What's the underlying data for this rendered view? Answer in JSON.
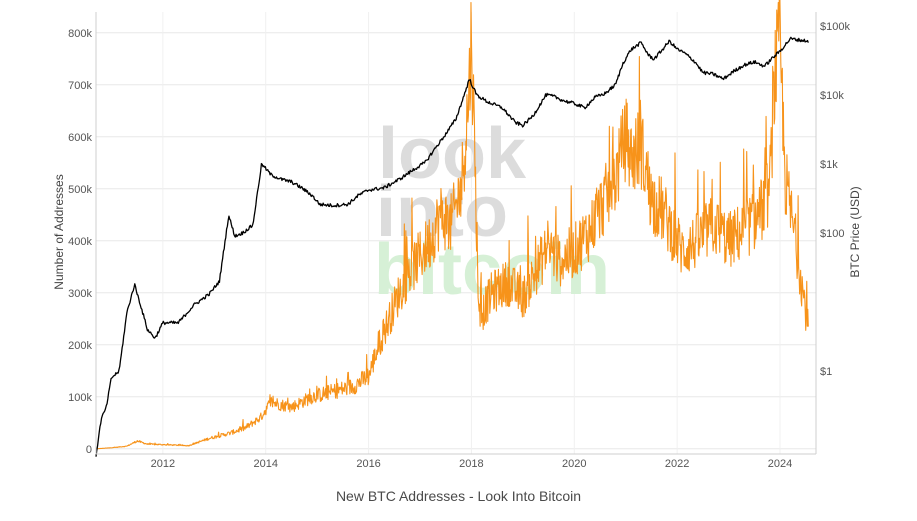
{
  "caption": "New BTC Addresses - Look Into Bitcoin",
  "watermark": {
    "line1": "look",
    "line2": "into",
    "line3": "bitcoin",
    "color_text": "#dcdcdc",
    "color_btc": "#d6f0d6"
  },
  "chart_data": {
    "type": "line",
    "title": "",
    "xlabel": "",
    "ylabel": "Number of Addresses",
    "y2label": "BTC Price (USD)",
    "xlim": [
      2010.7,
      2024.7
    ],
    "ylim": [
      -10000,
      840000
    ],
    "y2lim_log10": [
      -1.2,
      5.2
    ],
    "y2_scale": "log",
    "grid": true,
    "legend": "none",
    "x_ticks": [
      2012,
      2014,
      2016,
      2018,
      2020,
      2022,
      2024
    ],
    "x_tick_labels": [
      "2012",
      "2014",
      "2016",
      "2018",
      "2020",
      "2022",
      "2024"
    ],
    "y_ticks": [
      0,
      100000,
      200000,
      300000,
      400000,
      500000,
      600000,
      700000,
      800000
    ],
    "y_tick_labels": [
      "0",
      "100k",
      "200k",
      "300k",
      "400k",
      "500k",
      "600k",
      "700k",
      "800k"
    ],
    "y2_ticks": [
      1,
      100,
      1000,
      10000,
      100000
    ],
    "y2_tick_labels": [
      "$1",
      "$100",
      "$1k",
      "$10k",
      "$100k"
    ],
    "series": [
      {
        "axis": "y2",
        "color": "#000000",
        "x": [
          2010.7,
          2010.8,
          2010.9,
          2011.0,
          2011.15,
          2011.3,
          2011.45,
          2011.55,
          2011.7,
          2011.85,
          2012.0,
          2012.3,
          2012.6,
          2012.9,
          2013.1,
          2013.28,
          2013.4,
          2013.55,
          2013.75,
          2013.92,
          2014.1,
          2014.3,
          2014.5,
          2014.7,
          2014.9,
          2015.05,
          2015.3,
          2015.6,
          2015.8,
          2016.0,
          2016.3,
          2016.6,
          2016.9,
          2017.1,
          2017.3,
          2017.5,
          2017.7,
          2017.85,
          2017.96,
          2018.1,
          2018.3,
          2018.6,
          2018.85,
          2019.0,
          2019.2,
          2019.45,
          2019.6,
          2019.8,
          2020.0,
          2020.2,
          2020.4,
          2020.6,
          2020.8,
          2020.95,
          2021.1,
          2021.3,
          2021.45,
          2021.55,
          2021.7,
          2021.85,
          2022.0,
          2022.15,
          2022.35,
          2022.5,
          2022.7,
          2022.9,
          2023.1,
          2023.3,
          2023.5,
          2023.7,
          2023.85,
          2024.0,
          2024.2,
          2024.4,
          2024.55
        ],
        "values": [
          0.06,
          0.2,
          0.3,
          0.8,
          1.0,
          7,
          18,
          10,
          4,
          3,
          5,
          5,
          9,
          13,
          20,
          180,
          90,
          100,
          130,
          1000,
          700,
          600,
          550,
          450,
          350,
          260,
          250,
          260,
          350,
          420,
          450,
          600,
          850,
          1050,
          1700,
          2700,
          4500,
          9500,
          17000,
          10000,
          8000,
          6500,
          4000,
          3600,
          5000,
          10000,
          9500,
          8200,
          7500,
          6500,
          9200,
          10500,
          14000,
          29000,
          45000,
          57000,
          37000,
          33000,
          44000,
          60000,
          46000,
          40000,
          30000,
          21000,
          20000,
          17000,
          22000,
          27000,
          30000,
          26000,
          34000,
          43000,
          65000,
          62000,
          60000
        ]
      },
      {
        "axis": "y",
        "color": "#f7931a",
        "x": [
          2010.7,
          2011.0,
          2011.3,
          2011.5,
          2011.7,
          2012.0,
          2012.5,
          2012.9,
          2013.3,
          2013.6,
          2013.9,
          2014.1,
          2014.5,
          2014.9,
          2015.3,
          2015.7,
          2016.0,
          2016.2,
          2016.4,
          2016.6,
          2016.8,
          2017.0,
          2017.2,
          2017.4,
          2017.6,
          2017.8,
          2017.95,
          2018.0,
          2018.15,
          2018.4,
          2018.7,
          2019.0,
          2019.3,
          2019.5,
          2019.7,
          2020.0,
          2020.3,
          2020.6,
          2020.8,
          2021.0,
          2021.1,
          2021.3,
          2021.5,
          2021.7,
          2021.9,
          2022.1,
          2022.4,
          2022.7,
          2023.0,
          2023.3,
          2023.6,
          2023.8,
          2023.9,
          2024.0,
          2024.1,
          2024.3,
          2024.45,
          2024.55
        ],
        "values": [
          0,
          2000,
          5000,
          15000,
          9000,
          8000,
          6000,
          20000,
          30000,
          40000,
          60000,
          90000,
          80000,
          100000,
          110000,
          120000,
          140000,
          200000,
          250000,
          300000,
          340000,
          370000,
          400000,
          450000,
          430000,
          500000,
          680000,
          800000,
          250000,
          300000,
          320000,
          290000,
          350000,
          390000,
          360000,
          380000,
          420000,
          480000,
          520000,
          600000,
          560000,
          580000,
          480000,
          460000,
          420000,
          380000,
          400000,
          430000,
          400000,
          420000,
          450000,
          500000,
          720000,
          780000,
          520000,
          400000,
          300000,
          230000
        ]
      }
    ]
  }
}
